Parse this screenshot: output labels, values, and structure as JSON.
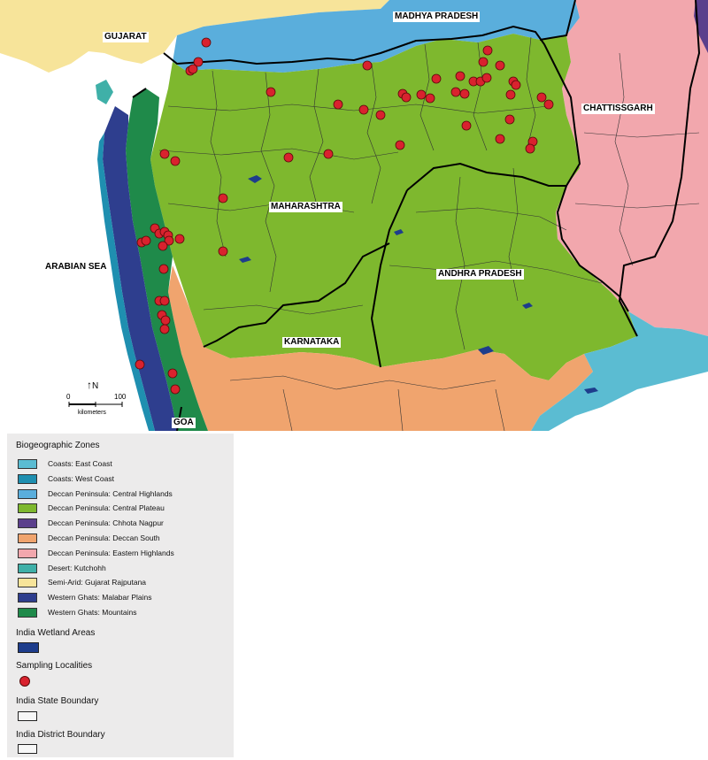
{
  "map": {
    "labels": {
      "gujarat": "GUJARAT",
      "madhya_pradesh": "MADHYA PRADESH",
      "chattisgarh": "CHATTISSGARH",
      "maharashtra": "MAHARASHTRA",
      "andhra_pradesh": "ANDHRA PRADESH",
      "karnataka": "KARNATAKA",
      "goa": "GOA",
      "arabian_sea": "ARABIAN SEA"
    },
    "scale": {
      "start": "0",
      "end": "100",
      "unit": "kilometers",
      "north": "N"
    },
    "colors": {
      "east_coast": "#5bbcd2",
      "west_coast": "#1f8fb0",
      "central_highlands": "#5aaedc",
      "central_plateau": "#7eb82e",
      "chhota_nagpur": "#5b3f8c",
      "deccan_south": "#f0a46e",
      "eastern_highlands": "#f2a7ad",
      "kutchohh": "#3fb0a8",
      "gujarat_rajputana": "#f7e49a",
      "malabar_plains": "#2e3e8e",
      "mountains": "#1f8a4a",
      "wetland": "#1e3d8c",
      "sampling_point": "#d9222e",
      "background": "#ffffff"
    }
  },
  "legend": {
    "zones_title": "Biogeographic Zones",
    "zones": [
      {
        "label": "Coasts: East Coast",
        "color": "#5bbcd2"
      },
      {
        "label": "Coasts: West Coast",
        "color": "#1f8fb0"
      },
      {
        "label": "Deccan Peninsula: Central Highlands",
        "color": "#5aaedc"
      },
      {
        "label": "Deccan Peninsula: Central Plateau",
        "color": "#7eb82e"
      },
      {
        "label": "Deccan Peninsula: Chhota Nagpur",
        "color": "#5b3f8c"
      },
      {
        "label": "Deccan Peninsula: Deccan South",
        "color": "#f0a46e"
      },
      {
        "label": "Deccan Peninsula: Eastern Highlands",
        "color": "#f2a7ad"
      },
      {
        "label": "Desert: Kutchohh",
        "color": "#3fb0a8"
      },
      {
        "label": "Semi-Arid: Gujarat Rajputana",
        "color": "#f7e49a"
      },
      {
        "label": "Western Ghats: Malabar Plains",
        "color": "#2e3e8e"
      },
      {
        "label": "Western Ghats: Mountains",
        "color": "#1f8a4a"
      }
    ],
    "wetland_title": "India Wetland Areas",
    "sampling_title": "Sampling Localities",
    "state_boundary_title": "India State Boundary",
    "district_boundary_title": "India District Boundary"
  }
}
